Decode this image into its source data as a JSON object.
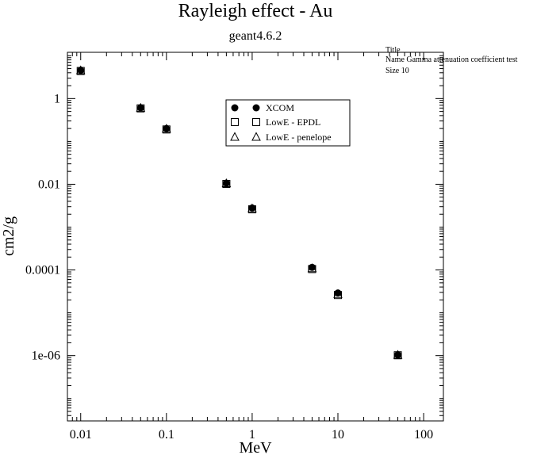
{
  "chart_data": {
    "type": "scatter",
    "title": "Rayleigh effect - Au",
    "subtitle": "geant4.6.2",
    "xlabel": "MeV",
    "ylabel": "cm2/g",
    "xscale": "log",
    "yscale": "log",
    "xlim": [
      0.007,
      170
    ],
    "ylim": [
      3e-08,
      12
    ],
    "x_ticks": [
      0.01,
      0.1,
      1,
      10,
      100
    ],
    "x_tick_labels": [
      "0.01",
      "0.1",
      "1",
      "10",
      "100"
    ],
    "y_ticks": [
      1e-06,
      0.0001,
      0.01,
      1
    ],
    "y_tick_labels": [
      "1e-06",
      "0.0001",
      "0.01",
      "1"
    ],
    "grid": false,
    "legend_position": "top-center",
    "series": [
      {
        "name": "XCOM",
        "marker": "filled-circle",
        "x": [
          0.01,
          0.05,
          0.1,
          0.5,
          1,
          5,
          10,
          50
        ],
        "y": [
          4.6,
          0.61,
          0.2,
          0.0106,
          0.0028,
          0.000115,
          2.9e-05,
          1.05e-06
        ]
      },
      {
        "name": "LowE - EPDL",
        "marker": "open-square",
        "x": [
          0.01,
          0.05,
          0.1,
          0.5,
          1,
          5,
          10,
          50
        ],
        "y": [
          4.4,
          0.59,
          0.19,
          0.0102,
          0.0026,
          0.000105,
          2.6e-05,
          1.02e-06
        ]
      },
      {
        "name": "LowE - penelope",
        "marker": "open-triangle",
        "x": [
          0.01,
          0.05,
          0.1,
          0.5,
          1,
          5,
          10,
          50
        ],
        "y": [
          4.5,
          0.6,
          0.195,
          0.0104,
          0.0027,
          0.000108,
          2.7e-05,
          1.03e-06
        ]
      }
    ],
    "stats_box": {
      "line1": "Title",
      "line2": "Name  Gamma attenuation coefficient test",
      "line3": "Size  10"
    }
  }
}
